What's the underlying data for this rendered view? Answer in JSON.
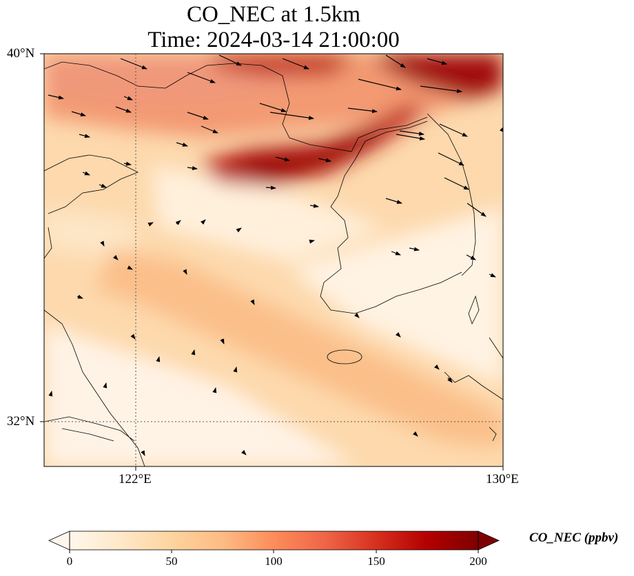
{
  "title": {
    "line1": "CO_NEC at 1.5km",
    "line2": "Time: 2024-03-14 21:00:00"
  },
  "axes": {
    "lat_ticks": [
      "40°N",
      "32°N"
    ],
    "lon_ticks": [
      "122°E",
      "130°E"
    ],
    "gridlines": "dotted",
    "lon_range": [
      120,
      130
    ],
    "lat_range": [
      31,
      40
    ]
  },
  "colorbar": {
    "label": "CO_NEC (ppbv)",
    "ticks": [
      "0",
      "50",
      "100",
      "150",
      "200"
    ],
    "range": [
      0,
      200
    ],
    "extend": "both",
    "colormap": "OrRd",
    "colors": [
      "#fff7ec",
      "#fee8c8",
      "#fdd49e",
      "#fdbb84",
      "#fc8d59",
      "#ef6548",
      "#d7301f",
      "#b30000",
      "#7f0000"
    ]
  },
  "field": {
    "variable": "CO_NEC",
    "level": "1.5km",
    "features": [
      {
        "name": "northern high-concentration band",
        "approx_ppbv": 150
      },
      {
        "name": "band over Bohai Bay and North Korea coast",
        "approx_ppbv": 190
      },
      {
        "name": "diagonal plume over Yellow Sea",
        "approx_ppbv": 70
      },
      {
        "name": "southern Yellow Sea / Korea background",
        "approx_ppbv": 10
      }
    ]
  },
  "wind_vectors": "westerly to west-northwesterly, strongest in the north"
}
